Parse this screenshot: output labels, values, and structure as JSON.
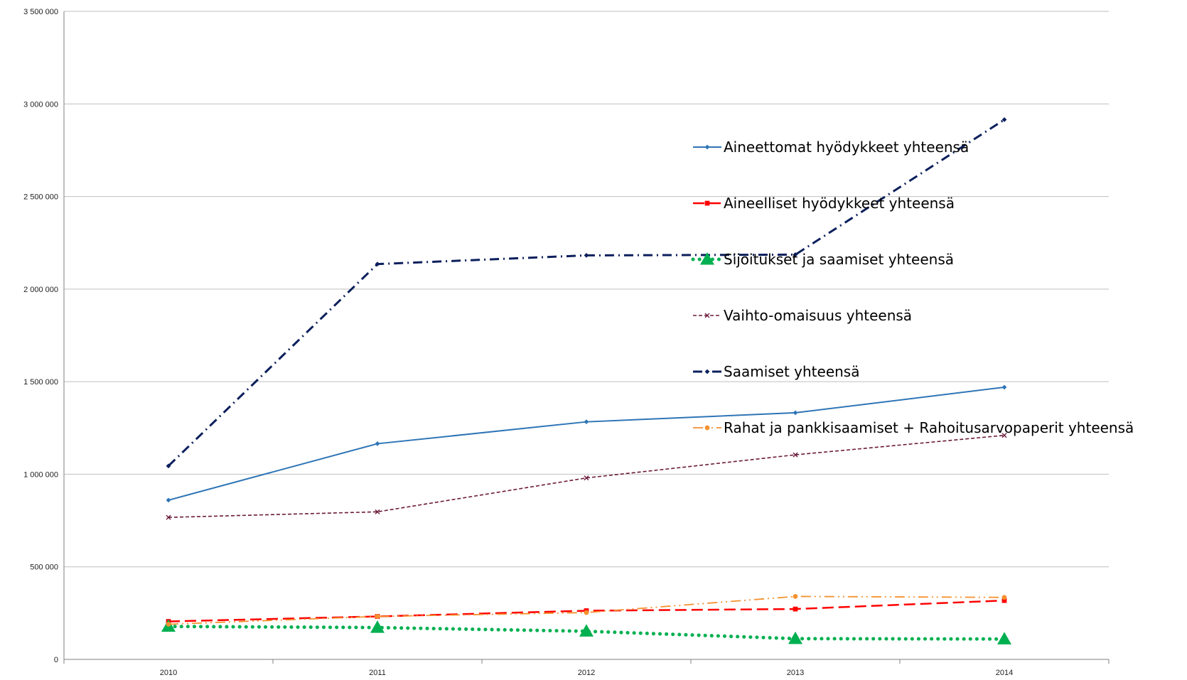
{
  "chart_data": {
    "type": "line",
    "title": "",
    "xlabel": "",
    "ylabel": "",
    "categories": [
      "2010",
      "2011",
      "2012",
      "2013",
      "2014"
    ],
    "ylim": [
      0,
      3500000
    ],
    "yticks": [
      0,
      500000,
      1000000,
      1500000,
      2000000,
      2500000,
      3000000,
      3500000
    ],
    "ytick_labels": [
      "0",
      "500 000",
      "1 000 000",
      "1 500 000",
      "2 000 000",
      "2 500 000",
      "3 000 000",
      "3 500 000"
    ],
    "grid": "horizontal",
    "legend_position": "right",
    "series": [
      {
        "name": "Aineettomat hyödykkeet yhteensä",
        "values": [
          860000,
          1165000,
          1283000,
          1332000,
          1470000
        ],
        "color": "#2E75B6",
        "dash": "solid",
        "marker": "diamond"
      },
      {
        "name": "Aineelliset hyödykkeet yhteensä",
        "values": [
          205000,
          232000,
          263000,
          272000,
          318000
        ],
        "color": "#FF0000",
        "dash": "long-dash",
        "marker": "square"
      },
      {
        "name": "Sijoitukset ja saamiset yhteensä",
        "values": [
          178000,
          172000,
          152000,
          112000,
          110000
        ],
        "color": "#00B050",
        "dash": "dotted",
        "marker": "triangle"
      },
      {
        "name": "Vaihto-omaisuus yhteensä",
        "values": [
          767000,
          797000,
          980000,
          1105000,
          1210000
        ],
        "color": "#6B1A3A",
        "dash": "short-dash",
        "marker": "x"
      },
      {
        "name": "Saamiset yhteensä",
        "values": [
          1045000,
          2135000,
          2182000,
          2186000,
          2915000
        ],
        "color": "#0B1F5C",
        "dash": "dash-dot",
        "marker": "diamond"
      },
      {
        "name": "Rahat ja pankkisaamiset + Rahoitusarvopaperit yhteensä",
        "values": [
          190000,
          232000,
          253000,
          340000,
          335000
        ],
        "color": "#F4912E",
        "dash": "dash-dot-dot",
        "marker": "circle"
      }
    ]
  }
}
